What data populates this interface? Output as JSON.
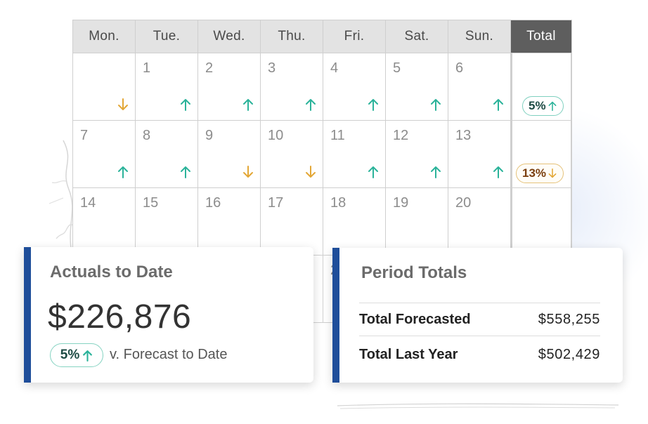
{
  "calendar": {
    "headers": [
      "Mon.",
      "Tue.",
      "Wed.",
      "Thu.",
      "Fri.",
      "Sat.",
      "Sun.",
      "Total"
    ],
    "weeks": [
      {
        "days": [
          {
            "num": "",
            "trend": "down"
          },
          {
            "num": "1",
            "trend": "up"
          },
          {
            "num": "2",
            "trend": "up"
          },
          {
            "num": "3",
            "trend": "up"
          },
          {
            "num": "4",
            "trend": "up"
          },
          {
            "num": "5",
            "trend": "up"
          },
          {
            "num": "6",
            "trend": "up"
          }
        ],
        "total": {
          "label": "5%",
          "trend": "up"
        }
      },
      {
        "days": [
          {
            "num": "7",
            "trend": "up"
          },
          {
            "num": "8",
            "trend": "up"
          },
          {
            "num": "9",
            "trend": "down"
          },
          {
            "num": "10",
            "trend": "down"
          },
          {
            "num": "11",
            "trend": "up"
          },
          {
            "num": "12",
            "trend": "up"
          },
          {
            "num": "13",
            "trend": "up"
          }
        ],
        "total": {
          "label": "13%",
          "trend": "down"
        }
      },
      {
        "days": [
          {
            "num": "14",
            "trend": ""
          },
          {
            "num": "15",
            "trend": ""
          },
          {
            "num": "16",
            "trend": ""
          },
          {
            "num": "17",
            "trend": ""
          },
          {
            "num": "18",
            "trend": ""
          },
          {
            "num": "19",
            "trend": ""
          },
          {
            "num": "20",
            "trend": ""
          }
        ],
        "total": {
          "label": "",
          "trend": ""
        }
      },
      {
        "days": [
          {
            "num": "",
            "trend": ""
          },
          {
            "num": "",
            "trend": ""
          },
          {
            "num": "",
            "trend": ""
          },
          {
            "num": "",
            "trend": ""
          },
          {
            "num": "2",
            "trend": ""
          },
          {
            "num": "",
            "trend": ""
          },
          {
            "num": "",
            "trend": ""
          }
        ],
        "total": {
          "label": "",
          "trend": ""
        }
      }
    ]
  },
  "actuals": {
    "title": "Actuals to Date",
    "amount": "$226,876",
    "change": "5%",
    "change_icon": "arrow-up-icon",
    "comparison": "v. Forecast to Date"
  },
  "period": {
    "title": "Period Totals",
    "rows": [
      {
        "label": "Total Forecasted",
        "value": "$558,255"
      },
      {
        "label": "Total Last Year",
        "value": "$502,429"
      }
    ]
  },
  "colors": {
    "up": "#2bb39a",
    "down": "#e3a736",
    "accent": "#1f4e9a",
    "header_bg": "#e3e3e3",
    "total_header_bg": "#5e5e5e"
  }
}
